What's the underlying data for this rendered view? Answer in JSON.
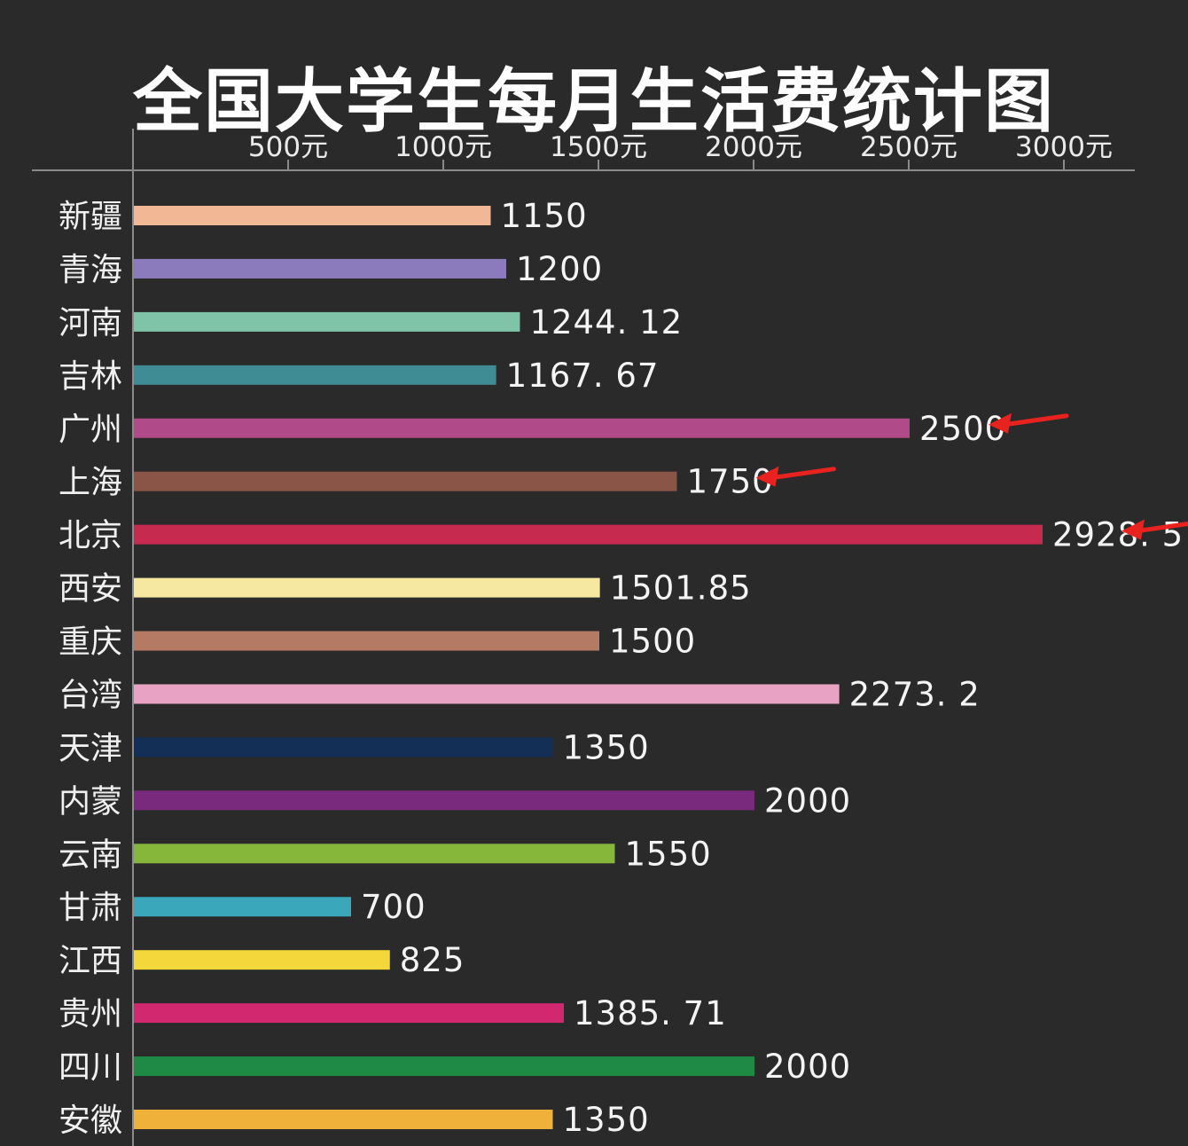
{
  "colors": {
    "background": "#2a2a2b",
    "axis": "#8a8a8a",
    "annotation_arrow": "#e8231f"
  },
  "chart_data": {
    "type": "bar",
    "orientation": "horizontal",
    "title": "全国大学生每月生活费统计图",
    "xlabel": "",
    "ylabel": "",
    "xlim": [
      0,
      3000
    ],
    "x_ticks": [
      500,
      1000,
      1500,
      2000,
      2500,
      3000
    ],
    "x_tick_labels": [
      "500元",
      "1000元",
      "1500元",
      "2000元",
      "2500元",
      "3000元"
    ],
    "x_axis_position": "top",
    "grid": false,
    "legend": "none",
    "categories": [
      "新疆",
      "青海",
      "河南",
      "吉林",
      "广州",
      "上海",
      "北京",
      "西安",
      "重庆",
      "台湾",
      "天津",
      "内蒙",
      "云南",
      "甘肃",
      "江西",
      "贵州",
      "四川",
      "安徽"
    ],
    "values": [
      1150,
      1200,
      1244.12,
      1167.67,
      2500,
      1750,
      2928.5,
      1501.85,
      1500,
      2273.2,
      1350,
      2000,
      1550,
      700,
      825,
      1385.71,
      2000,
      1350
    ],
    "value_labels": [
      "1150",
      "1200",
      "1244. 12",
      "1167. 67",
      "2500",
      "1750",
      "2928. 5",
      "1501.85",
      "1500",
      "2273. 2",
      "1350",
      "2000",
      "1550",
      "700",
      "825",
      "1385. 71",
      "2000",
      "1350"
    ],
    "bar_colors": [
      "#f2b896",
      "#8b7bbd",
      "#7fc4a8",
      "#3f8c95",
      "#b04a89",
      "#8a5447",
      "#c72a4f",
      "#f6e7a1",
      "#b57a64",
      "#e8a3c4",
      "#142f55",
      "#7a2a7c",
      "#86b63a",
      "#3aa7bb",
      "#f4d73a",
      "#d1286f",
      "#1f8a45",
      "#f0b13a"
    ],
    "annotations": [
      {
        "type": "arrow",
        "target": "广州",
        "color": "#e8231f"
      },
      {
        "type": "arrow",
        "target": "上海",
        "color": "#e8231f"
      },
      {
        "type": "arrow",
        "target": "北京",
        "color": "#e8231f"
      }
    ]
  }
}
